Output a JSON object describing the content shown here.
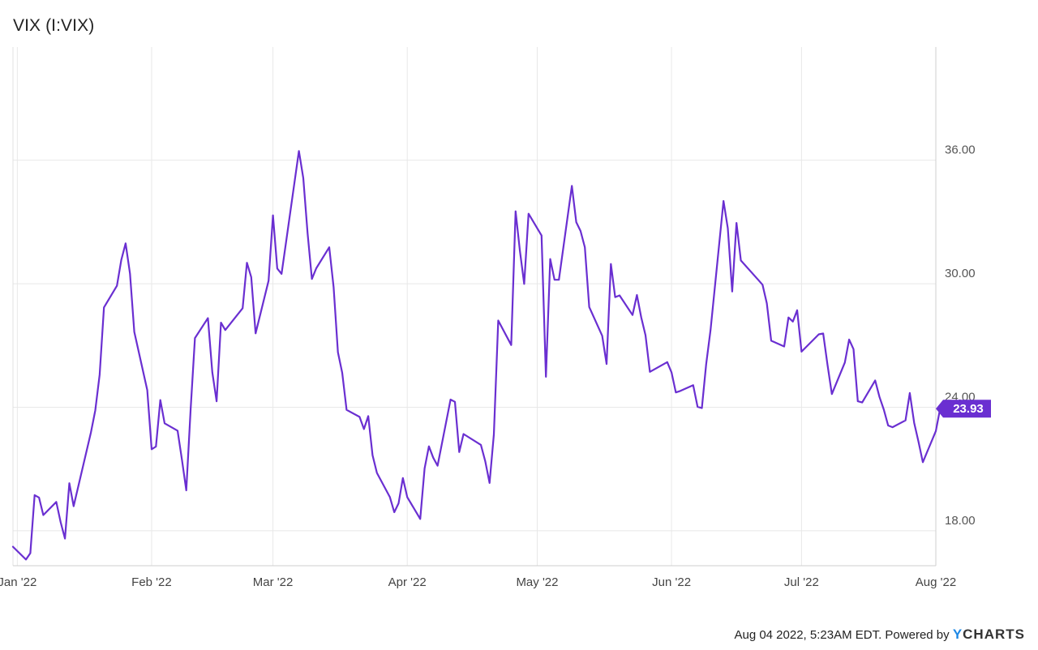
{
  "title": "VIX (I:VIX)",
  "footer": {
    "timestamp": "Aug 04 2022, 5:23AM EDT.",
    "powered_by": "Powered by",
    "brand_first": "Y",
    "brand_rest": "CHARTS"
  },
  "colors": {
    "line": "#6a2fd1",
    "label_bg": "#6a2fd1",
    "grid": "#e8e8e8",
    "brand_accent": "#1e88e5"
  },
  "chart_data": {
    "type": "line",
    "title": "VIX (I:VIX)",
    "xlabel": "",
    "ylabel": "",
    "ylim": [
      16.3,
      41.5
    ],
    "yticks": [
      18,
      24,
      30,
      36
    ],
    "ytick_labels": [
      "18.00",
      "24.00",
      "30.00",
      "36.00"
    ],
    "xticks": [
      {
        "label": "Jan '22",
        "date": "2022-01-01"
      },
      {
        "label": "Feb '22",
        "date": "2022-02-01"
      },
      {
        "label": "Mar '22",
        "date": "2022-03-01"
      },
      {
        "label": "Apr '22",
        "date": "2022-04-01"
      },
      {
        "label": "May '22",
        "date": "2022-05-01"
      },
      {
        "label": "Jun '22",
        "date": "2022-06-01"
      },
      {
        "label": "Jul '22",
        "date": "2022-07-01"
      },
      {
        "label": "Aug '22",
        "date": "2022-08-01"
      }
    ],
    "xlim": [
      "2021-12-31",
      "2022-08-01"
    ],
    "grid": true,
    "last_value_label": "23.93",
    "series": [
      {
        "points": [
          [
            "2021-12-31",
            17.22
          ],
          [
            "2022-01-03",
            16.6
          ],
          [
            "2022-01-04",
            16.91
          ],
          [
            "2022-01-05",
            19.73
          ],
          [
            "2022-01-06",
            19.61
          ],
          [
            "2022-01-07",
            18.76
          ],
          [
            "2022-01-10",
            19.4
          ],
          [
            "2022-01-11",
            18.41
          ],
          [
            "2022-01-12",
            17.62
          ],
          [
            "2022-01-13",
            20.31
          ],
          [
            "2022-01-14",
            19.19
          ],
          [
            "2022-01-18",
            22.79
          ],
          [
            "2022-01-19",
            23.85
          ],
          [
            "2022-01-20",
            25.59
          ],
          [
            "2022-01-21",
            28.85
          ],
          [
            "2022-01-24",
            29.9
          ],
          [
            "2022-01-25",
            31.16
          ],
          [
            "2022-01-26",
            31.96
          ],
          [
            "2022-01-27",
            30.49
          ],
          [
            "2022-01-28",
            27.66
          ],
          [
            "2022-01-31",
            24.83
          ],
          [
            "2022-02-01",
            21.96
          ],
          [
            "2022-02-02",
            22.09
          ],
          [
            "2022-02-03",
            24.35
          ],
          [
            "2022-02-04",
            23.22
          ],
          [
            "2022-02-07",
            22.86
          ],
          [
            "2022-02-08",
            21.44
          ],
          [
            "2022-02-09",
            19.96
          ],
          [
            "2022-02-10",
            23.91
          ],
          [
            "2022-02-11",
            27.36
          ],
          [
            "2022-02-14",
            28.33
          ],
          [
            "2022-02-15",
            25.7
          ],
          [
            "2022-02-16",
            24.29
          ],
          [
            "2022-02-17",
            28.11
          ],
          [
            "2022-02-18",
            27.75
          ],
          [
            "2022-02-22",
            28.81
          ],
          [
            "2022-02-23",
            31.02
          ],
          [
            "2022-02-24",
            30.32
          ],
          [
            "2022-02-25",
            27.59
          ],
          [
            "2022-02-28",
            30.15
          ],
          [
            "2022-03-01",
            33.32
          ],
          [
            "2022-03-02",
            30.74
          ],
          [
            "2022-03-03",
            30.48
          ],
          [
            "2022-03-04",
            31.98
          ],
          [
            "2022-03-07",
            36.45
          ],
          [
            "2022-03-08",
            35.13
          ],
          [
            "2022-03-09",
            32.45
          ],
          [
            "2022-03-10",
            30.23
          ],
          [
            "2022-03-11",
            30.75
          ],
          [
            "2022-03-14",
            31.77
          ],
          [
            "2022-03-15",
            29.83
          ],
          [
            "2022-03-16",
            26.67
          ],
          [
            "2022-03-17",
            25.67
          ],
          [
            "2022-03-18",
            23.87
          ],
          [
            "2022-03-21",
            23.53
          ],
          [
            "2022-03-22",
            22.94
          ],
          [
            "2022-03-23",
            23.57
          ],
          [
            "2022-03-24",
            21.67
          ],
          [
            "2022-03-25",
            20.81
          ],
          [
            "2022-03-28",
            19.63
          ],
          [
            "2022-03-29",
            18.9
          ],
          [
            "2022-03-30",
            19.33
          ],
          [
            "2022-03-31",
            20.56
          ],
          [
            "2022-04-01",
            19.63
          ],
          [
            "2022-04-04",
            18.57
          ],
          [
            "2022-04-05",
            21.03
          ],
          [
            "2022-04-06",
            22.1
          ],
          [
            "2022-04-07",
            21.55
          ],
          [
            "2022-04-08",
            21.16
          ],
          [
            "2022-04-11",
            24.37
          ],
          [
            "2022-04-12",
            24.26
          ],
          [
            "2022-04-13",
            21.82
          ],
          [
            "2022-04-14",
            22.7
          ],
          [
            "2022-04-18",
            22.17
          ],
          [
            "2022-04-19",
            21.37
          ],
          [
            "2022-04-20",
            20.32
          ],
          [
            "2022-04-21",
            22.68
          ],
          [
            "2022-04-22",
            28.21
          ],
          [
            "2022-04-25",
            27.02
          ],
          [
            "2022-04-26",
            33.52
          ],
          [
            "2022-04-27",
            31.6
          ],
          [
            "2022-04-28",
            29.99
          ],
          [
            "2022-04-29",
            33.4
          ],
          [
            "2022-05-02",
            32.34
          ],
          [
            "2022-05-03",
            25.48
          ],
          [
            "2022-05-04",
            31.2
          ],
          [
            "2022-05-05",
            30.19
          ],
          [
            "2022-05-06",
            30.19
          ],
          [
            "2022-05-09",
            34.75
          ],
          [
            "2022-05-10",
            32.99
          ],
          [
            "2022-05-11",
            32.56
          ],
          [
            "2022-05-12",
            31.77
          ],
          [
            "2022-05-13",
            28.87
          ],
          [
            "2022-05-16",
            27.47
          ],
          [
            "2022-05-17",
            26.1
          ],
          [
            "2022-05-18",
            30.96
          ],
          [
            "2022-05-19",
            29.35
          ],
          [
            "2022-05-20",
            29.43
          ],
          [
            "2022-05-23",
            28.48
          ],
          [
            "2022-05-24",
            29.45
          ],
          [
            "2022-05-25",
            28.37
          ],
          [
            "2022-05-26",
            27.5
          ],
          [
            "2022-05-27",
            25.72
          ],
          [
            "2022-05-31",
            26.19
          ],
          [
            "2022-06-01",
            25.69
          ],
          [
            "2022-06-02",
            24.72
          ],
          [
            "2022-06-03",
            24.79
          ],
          [
            "2022-06-06",
            25.07
          ],
          [
            "2022-06-07",
            24.02
          ],
          [
            "2022-06-08",
            23.96
          ],
          [
            "2022-06-09",
            26.09
          ],
          [
            "2022-06-10",
            27.75
          ],
          [
            "2022-06-13",
            34.02
          ],
          [
            "2022-06-14",
            32.69
          ],
          [
            "2022-06-15",
            29.62
          ],
          [
            "2022-06-16",
            32.95
          ],
          [
            "2022-06-17",
            31.13
          ],
          [
            "2022-06-21",
            30.19
          ],
          [
            "2022-06-22",
            29.95
          ],
          [
            "2022-06-23",
            29.05
          ],
          [
            "2022-06-24",
            27.23
          ],
          [
            "2022-06-27",
            26.95
          ],
          [
            "2022-06-28",
            28.36
          ],
          [
            "2022-06-29",
            28.16
          ],
          [
            "2022-06-30",
            28.71
          ],
          [
            "2022-07-01",
            26.7
          ],
          [
            "2022-07-05",
            27.54
          ],
          [
            "2022-07-06",
            27.58
          ],
          [
            "2022-07-07",
            26.07
          ],
          [
            "2022-07-08",
            24.64
          ],
          [
            "2022-07-11",
            26.17
          ],
          [
            "2022-07-12",
            27.29
          ],
          [
            "2022-07-13",
            26.82
          ],
          [
            "2022-07-14",
            24.29
          ],
          [
            "2022-07-15",
            24.23
          ],
          [
            "2022-07-18",
            25.3
          ],
          [
            "2022-07-19",
            24.5
          ],
          [
            "2022-07-20",
            23.88
          ],
          [
            "2022-07-21",
            23.11
          ],
          [
            "2022-07-22",
            23.03
          ],
          [
            "2022-07-25",
            23.36
          ],
          [
            "2022-07-26",
            24.69
          ],
          [
            "2022-07-27",
            23.24
          ],
          [
            "2022-07-28",
            22.33
          ],
          [
            "2022-07-29",
            21.33
          ],
          [
            "2022-08-01",
            22.84
          ],
          [
            "2022-08-02",
            23.93
          ]
        ]
      }
    ]
  }
}
